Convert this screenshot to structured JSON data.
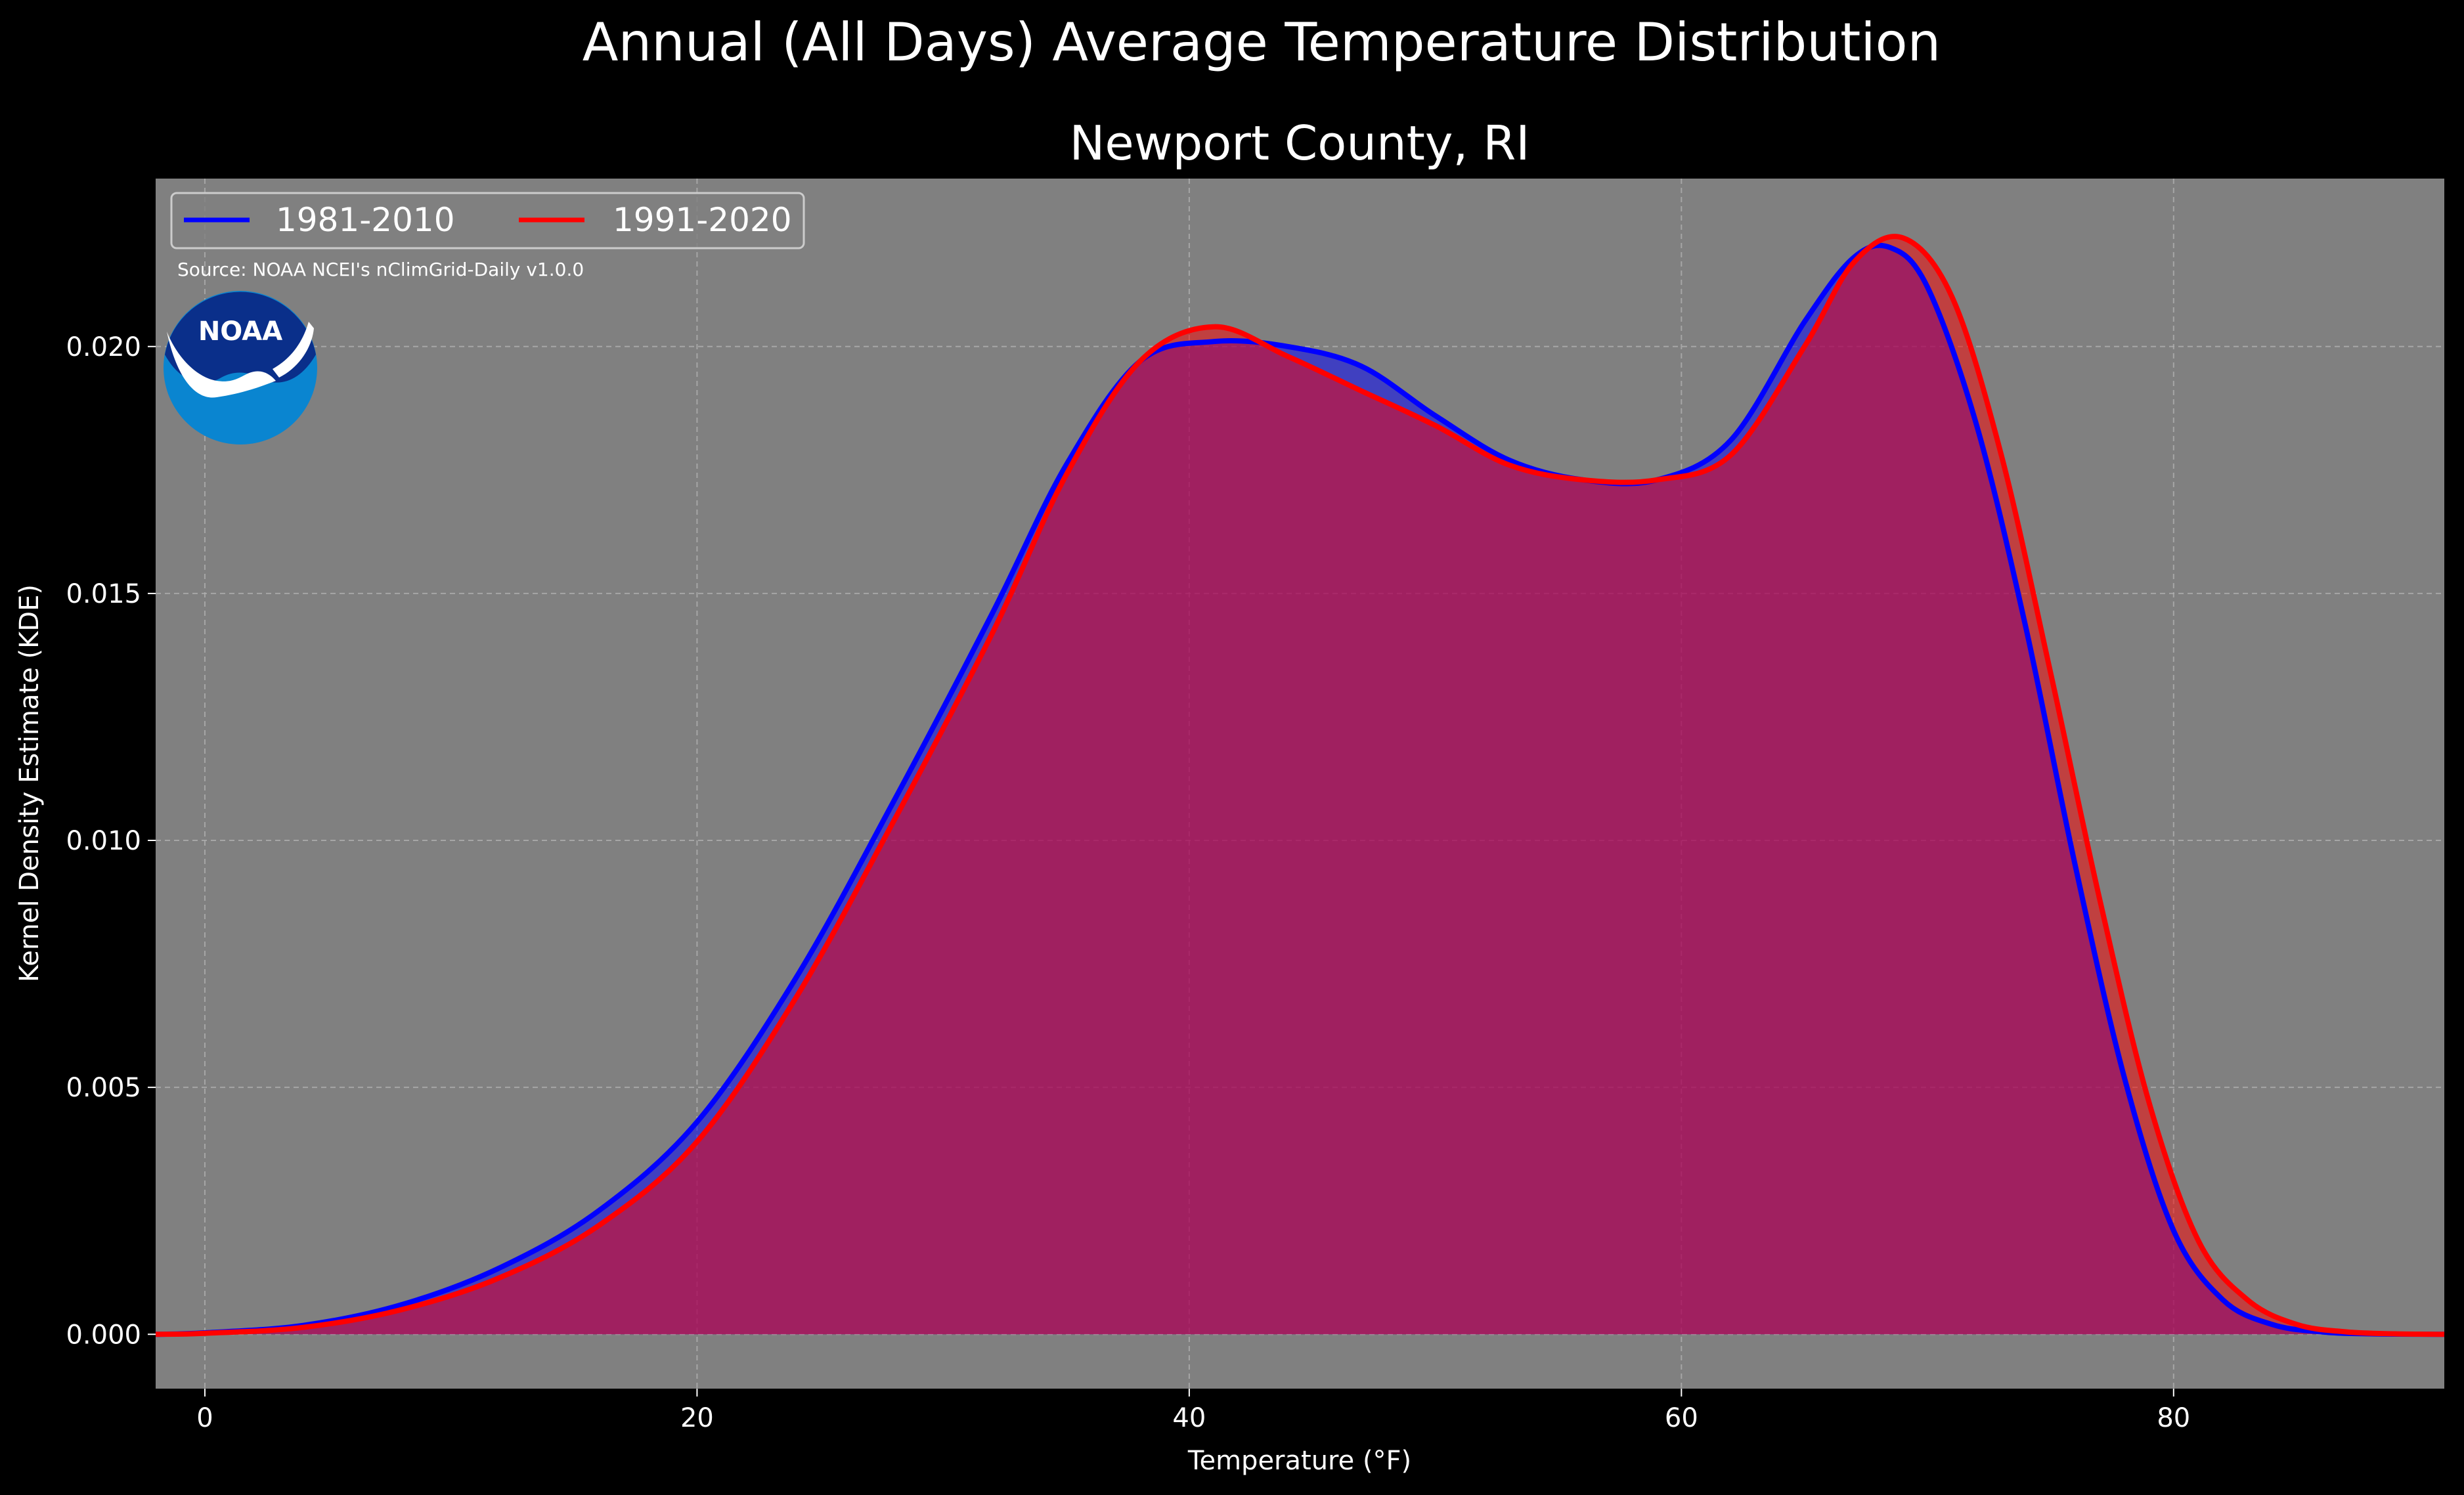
{
  "chart_data": {
    "type": "area",
    "title": "Annual (All Days) Average Temperature Distribution",
    "subtitle": "Newport County, RI",
    "xlabel": "Temperature (°F)",
    "ylabel": "Kernel Density Estimate (KDE)",
    "xlim": [
      -2,
      91
    ],
    "ylim": [
      -0.0011,
      0.0234
    ],
    "xticks": [
      0,
      20,
      40,
      60,
      80
    ],
    "xtick_labels": [
      "0",
      "20",
      "40",
      "60",
      "80"
    ],
    "yticks": [
      0.0,
      0.005,
      0.01,
      0.015,
      0.02
    ],
    "ytick_labels": [
      "0.000",
      "0.005",
      "0.010",
      "0.015",
      "0.020"
    ],
    "grid": true,
    "legend_position": "top-left",
    "annotation": "Source: NOAA NCEI's nClimGrid-Daily v1.0.0",
    "logo_text": "NOAA",
    "series": [
      {
        "name": "1981-2010",
        "color": "#0000ff",
        "fill": "#0000ff",
        "x": [
          -2,
          0,
          4,
          8,
          12,
          16,
          20,
          24,
          28,
          32,
          35,
          38,
          41,
          44,
          47,
          50,
          53,
          56,
          59,
          62,
          65,
          67,
          68.5,
          70,
          72,
          74,
          76,
          78,
          80,
          82,
          84,
          86,
          88,
          91
        ],
        "y": [
          0.0,
          3e-05,
          0.00018,
          0.0006,
          0.00135,
          0.0025,
          0.0043,
          0.0072,
          0.0108,
          0.0146,
          0.0176,
          0.0197,
          0.0201,
          0.02,
          0.0196,
          0.0186,
          0.0177,
          0.0173,
          0.0173,
          0.0181,
          0.0205,
          0.0218,
          0.022,
          0.0212,
          0.0184,
          0.0143,
          0.0095,
          0.0052,
          0.0021,
          0.0007,
          0.0002,
          5e-05,
          1e-05,
          0.0
        ]
      },
      {
        "name": "1991-2020",
        "color": "#ff0000",
        "fill": "#ff0000",
        "x": [
          -2,
          0,
          4,
          8,
          12,
          16,
          20,
          24,
          28,
          32,
          35,
          38,
          41,
          44,
          47,
          50,
          53,
          56,
          59,
          62,
          65,
          67,
          69,
          71,
          73,
          75,
          77,
          79,
          81,
          83,
          85,
          87,
          89,
          91
        ],
        "y": [
          0.0,
          2e-05,
          0.00014,
          0.0005,
          0.00115,
          0.0022,
          0.0039,
          0.0068,
          0.0104,
          0.0142,
          0.0174,
          0.0197,
          0.0204,
          0.0198,
          0.0191,
          0.0184,
          0.0176,
          0.0173,
          0.0173,
          0.0178,
          0.02,
          0.0217,
          0.0222,
          0.021,
          0.0178,
          0.0134,
          0.0088,
          0.0047,
          0.0019,
          0.0007,
          0.0002,
          5e-05,
          1e-05,
          0.0
        ]
      }
    ]
  }
}
